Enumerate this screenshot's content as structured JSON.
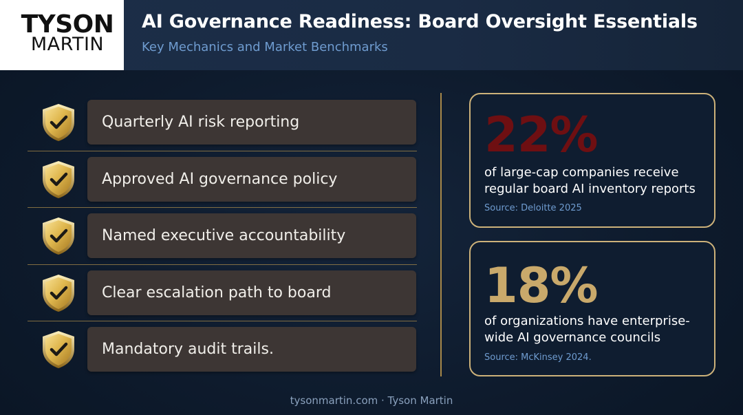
{
  "header": {
    "logo_line1": "TYSON",
    "logo_line2": "MARTIN",
    "title": "AI Governance Readiness: Board Oversight Essentials",
    "subtitle": "Key Mechanics and Market Benchmarks"
  },
  "checklist": {
    "icon": "shield-check-icon",
    "items": [
      {
        "label": "Quarterly AI risk reporting"
      },
      {
        "label": "Approved AI governance policy"
      },
      {
        "label": "Named executive accountability"
      },
      {
        "label": "Clear escalation path to board"
      },
      {
        "label": "Mandatory audit trails."
      }
    ]
  },
  "stats": [
    {
      "value": "22%",
      "description": "of large-cap companies receive regular board AI inventory reports",
      "source": "Source: Deloitte 2025",
      "value_color": "#6e0f12"
    },
    {
      "value": "18%",
      "description": "of organizations have enterprise-wide AI governance councils",
      "source": "Source: McKinsey 2024.",
      "value_color": "#c9a96b"
    }
  ],
  "footer": {
    "text": "tysonmartin.com · Tyson Martin"
  },
  "colors": {
    "background": "#0e1b2d",
    "accent_gold": "#cdb27a",
    "row_box": "#3d3634",
    "subtitle_blue": "#6f9cd0"
  }
}
